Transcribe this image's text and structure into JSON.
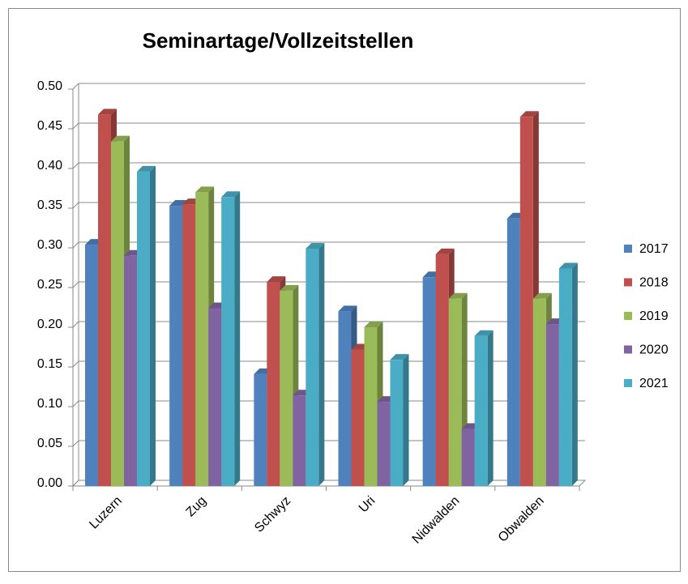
{
  "chart_data": {
    "type": "bar",
    "title": "Seminartage/Vollzeitstellen",
    "categories": [
      "Luzern",
      "Zug",
      "Schwyz",
      "Uri",
      "Nidwalden",
      "Obwalden"
    ],
    "series": [
      {
        "name": "2017",
        "color": "#4f81bd",
        "values": [
          0.304,
          0.353,
          0.141,
          0.22,
          0.263,
          0.337
        ]
      },
      {
        "name": "2018",
        "color": "#c0504d",
        "values": [
          0.468,
          0.355,
          0.257,
          0.172,
          0.292,
          0.465
        ]
      },
      {
        "name": "2019",
        "color": "#9bbb59",
        "values": [
          0.434,
          0.37,
          0.246,
          0.2,
          0.236,
          0.236
        ]
      },
      {
        "name": "2020",
        "color": "#8064a2",
        "values": [
          0.29,
          0.224,
          0.114,
          0.106,
          0.072,
          0.204
        ]
      },
      {
        "name": "2021",
        "color": "#4bacc6",
        "values": [
          0.396,
          0.364,
          0.299,
          0.159,
          0.189,
          0.274
        ]
      }
    ],
    "ylim": [
      0,
      0.5
    ],
    "yticks": [
      {
        "value": 0,
        "label": "0.00"
      },
      {
        "value": 0.05,
        "label": "0.05"
      },
      {
        "value": 0.1,
        "label": "0.10"
      },
      {
        "value": 0.15,
        "label": "0.15"
      },
      {
        "value": 0.2,
        "label": "0.20"
      },
      {
        "value": 0.25,
        "label": "0.25"
      },
      {
        "value": 0.3,
        "label": "0.30"
      },
      {
        "value": 0.35,
        "label": "0.35"
      },
      {
        "value": 0.4,
        "label": "0.40"
      },
      {
        "value": 0.45,
        "label": "0.45"
      },
      {
        "value": 0.5,
        "label": "0.50"
      }
    ],
    "grid": true,
    "legend": "right"
  }
}
